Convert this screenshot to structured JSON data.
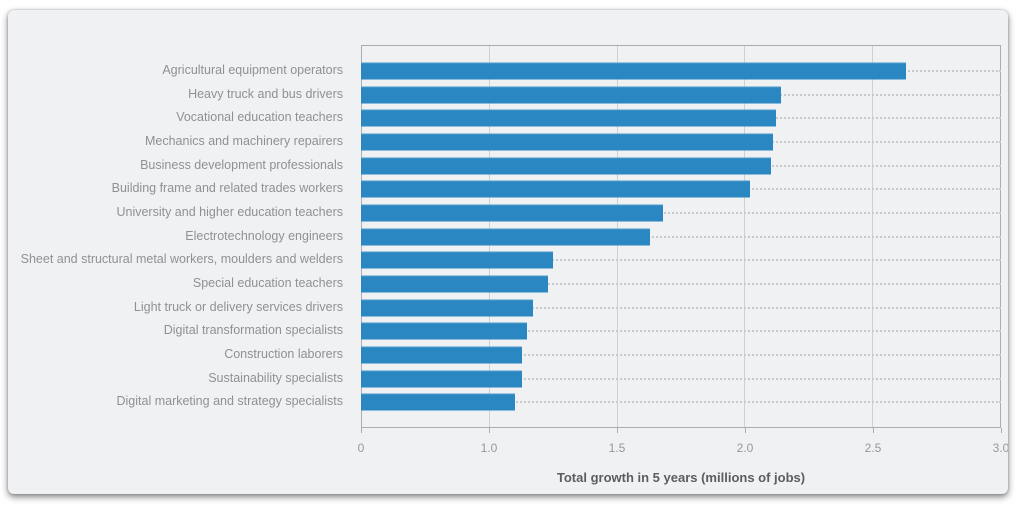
{
  "chart_data": {
    "type": "bar",
    "orientation": "horizontal",
    "title": "",
    "xlabel": "Total growth in 5 years (millions of jobs)",
    "ylabel": "",
    "categories": [
      "Agricultural equipment operators",
      "Heavy truck and bus drivers",
      "Vocational education teachers",
      "Mechanics and machinery repairers",
      "Business development professionals",
      "Building frame and related trades workers",
      "University and higher education teachers",
      "Electrotechnology engineers",
      "Sheet and structural metal workers, moulders and welders",
      "Special education teachers",
      "Light truck or delivery services drivers",
      "Digital transformation specialists",
      "Construction laborers",
      "Sustainability specialists",
      "Digital marketing and strategy specialists"
    ],
    "values": [
      2.63,
      2.14,
      2.12,
      2.11,
      2.1,
      2.02,
      1.68,
      1.63,
      1.25,
      1.23,
      1.17,
      1.15,
      1.13,
      1.13,
      1.1
    ],
    "x_ticks": [
      0,
      1.0,
      1.5,
      2.0,
      2.5,
      3.0
    ],
    "x_tick_labels": [
      "0",
      "1.0",
      "1.5",
      "2.0",
      "2.5",
      "3.0"
    ],
    "xlim": [
      0,
      3.0
    ],
    "axis_note": "ticks are equally spaced on screen although first interval spans 1.0 units and later intervals span 0.5 units",
    "grid": true,
    "legend": false,
    "colors": {
      "bar": "#2a87c2",
      "card_background": "#f0f1f3",
      "grid_line": "#ced1d4",
      "plot_border": "#aaadb0",
      "row_dotted_line": "#c7c9cb",
      "category_label_text": "#8e9194",
      "tick_label_text": "#95989b",
      "axis_title_text": "#5b5e61",
      "page_background": "#ffffff"
    }
  }
}
